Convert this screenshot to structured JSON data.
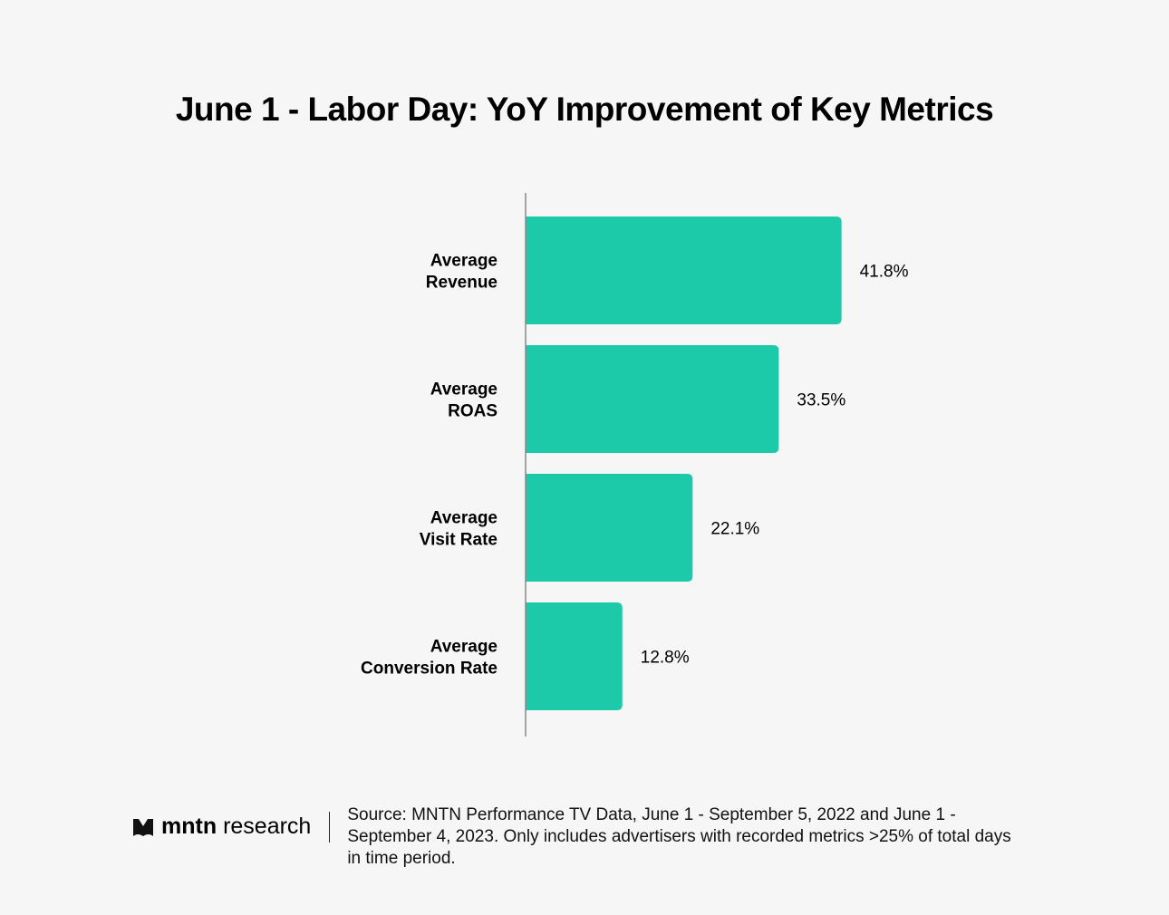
{
  "chart_data": {
    "type": "bar",
    "orientation": "horizontal",
    "title": "June 1 - Labor Day: YoY Improvement of Key Metrics",
    "categories": [
      [
        "Average",
        "Revenue"
      ],
      [
        "Average",
        "ROAS"
      ],
      [
        "Average",
        "Visit Rate"
      ],
      [
        "Average",
        "Conversion Rate"
      ]
    ],
    "values": [
      41.8,
      33.5,
      22.1,
      12.8
    ],
    "value_labels": [
      "41.8%",
      "33.5%",
      "22.1%",
      "12.8%"
    ],
    "xlim": [
      0,
      50
    ],
    "grid": false,
    "bar_color": "#1ccaaa"
  },
  "footer": {
    "logo_bold": "mntn",
    "logo_light": "research",
    "source": "Source: MNTN Performance TV Data, June 1 - September 5, 2022 and June 1 - September 4, 2023. Only includes advertisers with recorded metrics >25% of total days in time period."
  }
}
